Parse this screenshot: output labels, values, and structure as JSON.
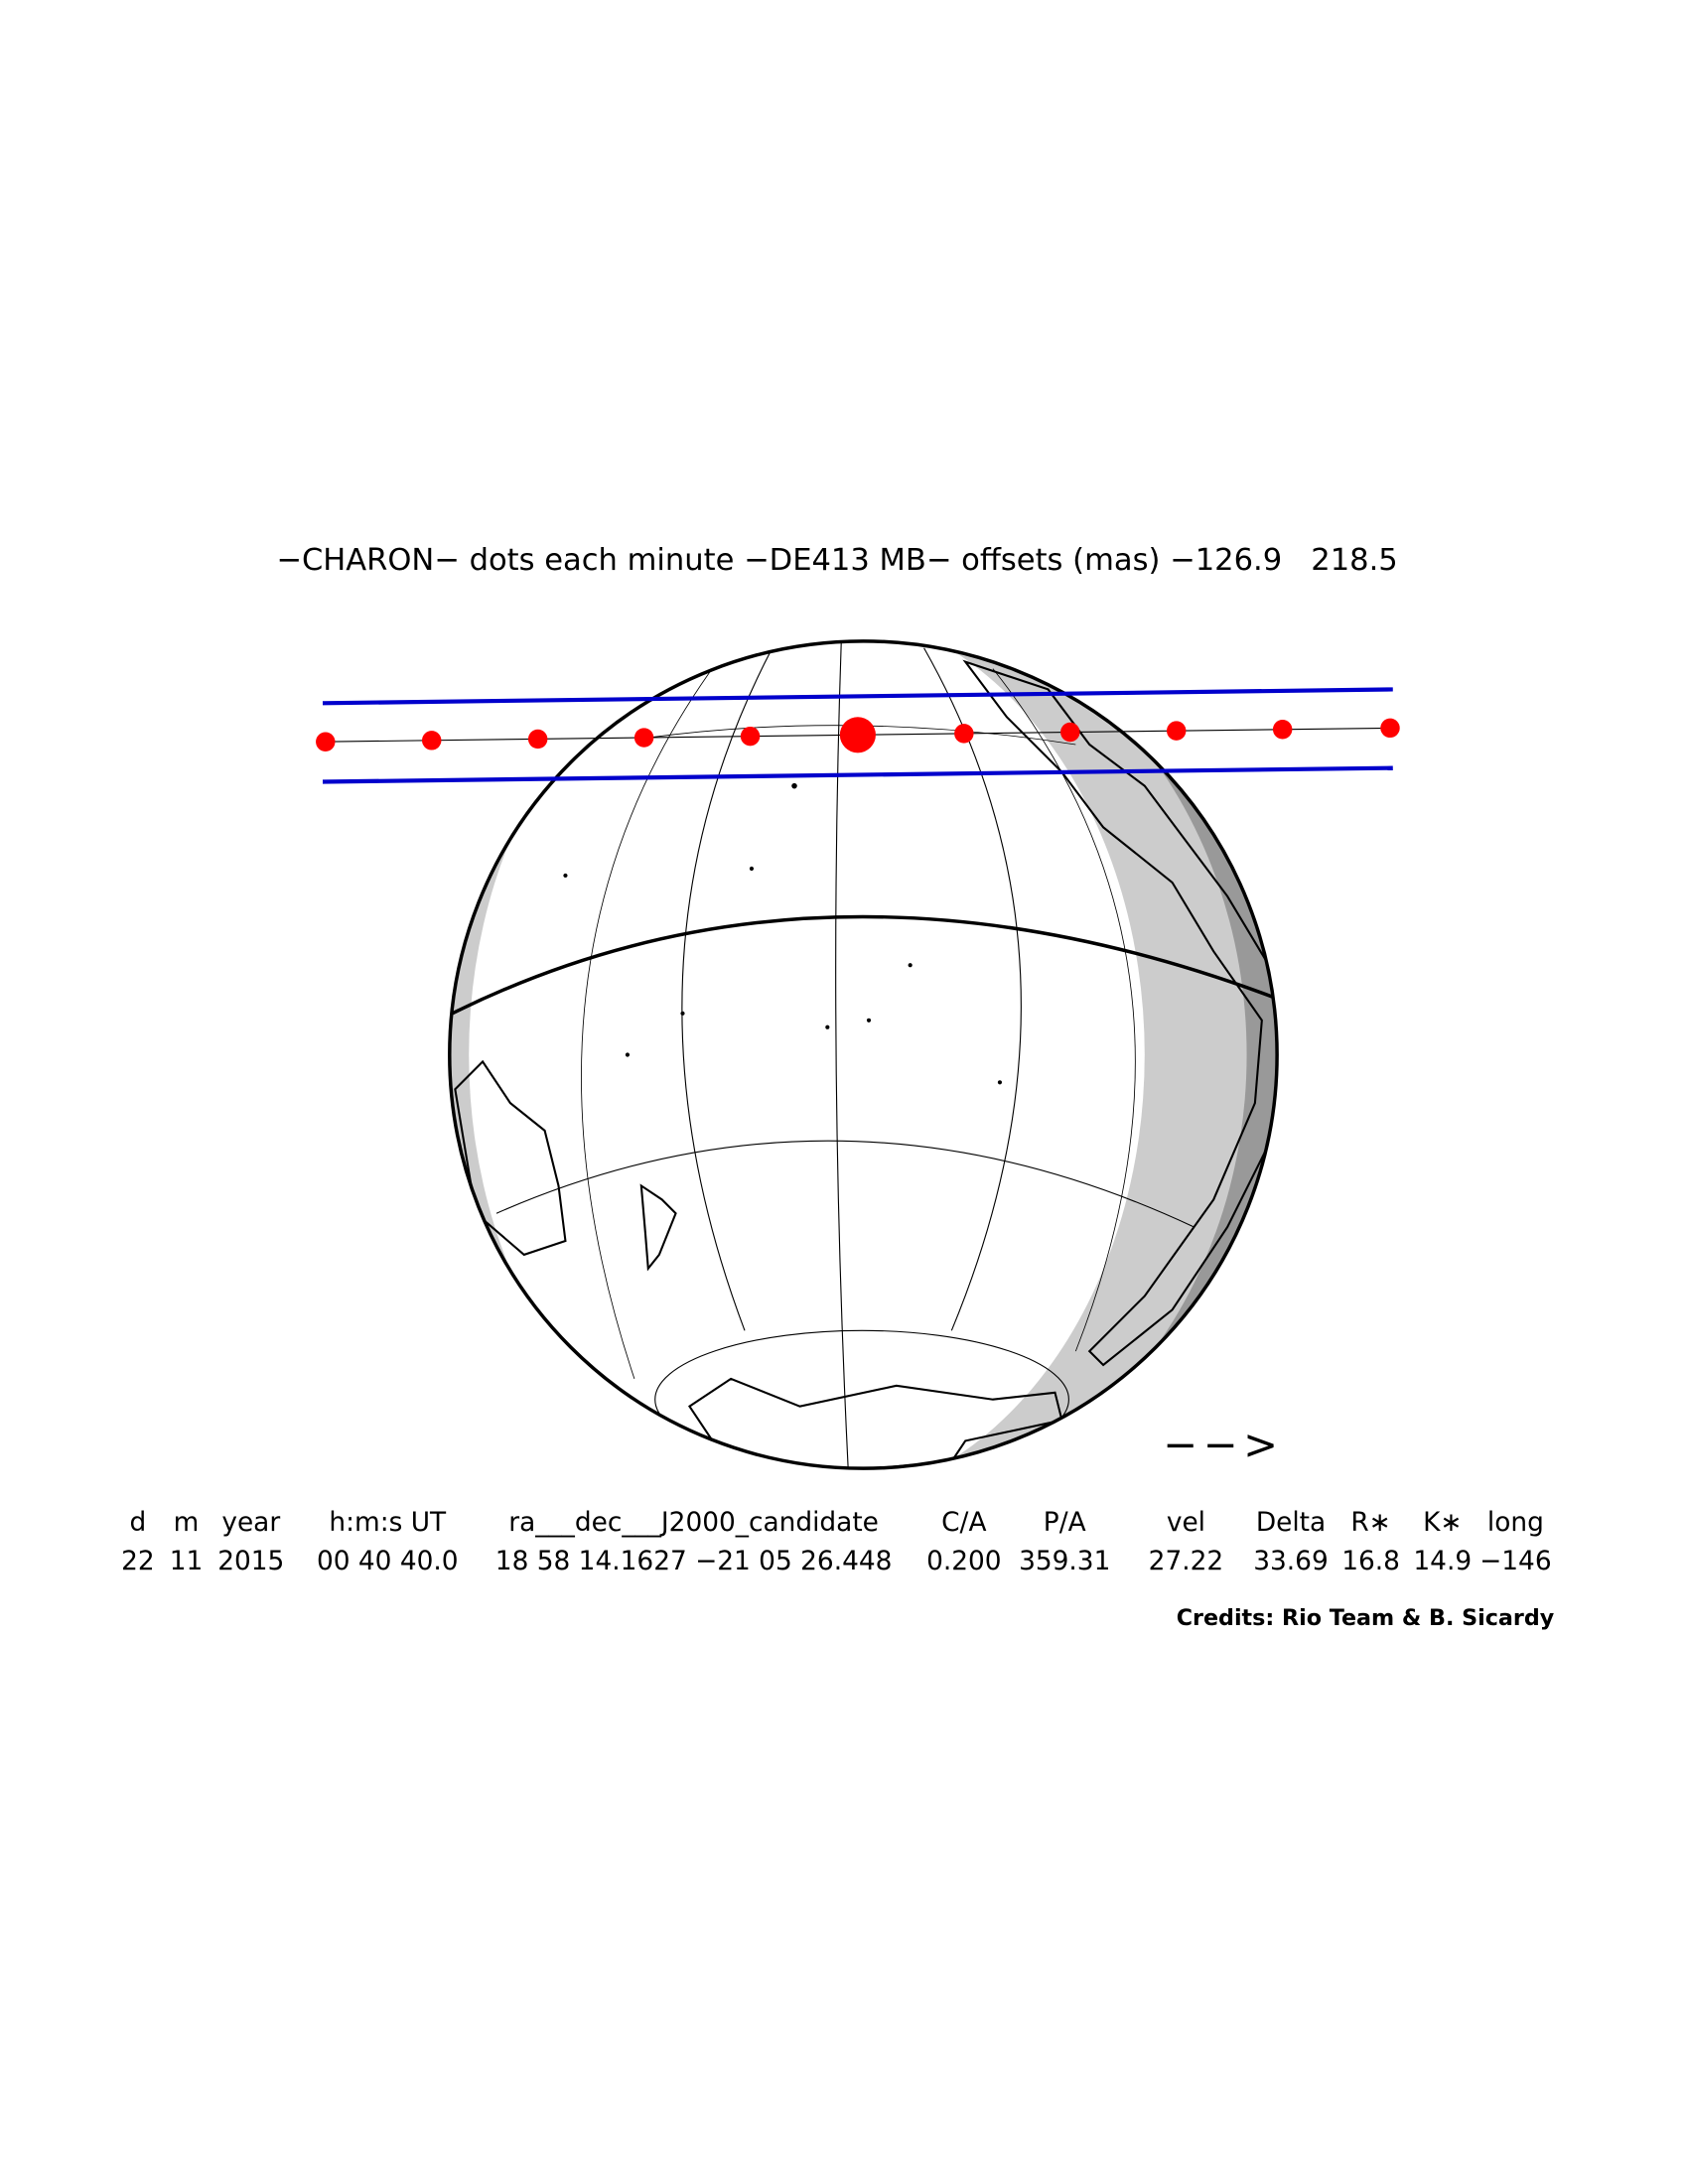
{
  "title": "−CHARON− dots each minute −DE413 MB− offsets (mas) −126.9   218.5",
  "direction_arrow": "−−>",
  "table": {
    "headers": [
      "d",
      "m",
      "year",
      "h:m:s UT",
      "ra___dec___J2000_candidate",
      "C/A",
      "P/A",
      "vel",
      "Delta",
      "R∗",
      "K∗",
      "long"
    ],
    "rows": [
      [
        "22",
        "11",
        "2015",
        "00 40 40.0",
        "18 58 14.1627 −21 05 26.448",
        "0.200",
        "359.31",
        "27.22",
        "33.69",
        "16.8",
        "14.9",
        "−146"
      ]
    ]
  },
  "credits": "Credits: Rio Team & B. Sicardy"
}
